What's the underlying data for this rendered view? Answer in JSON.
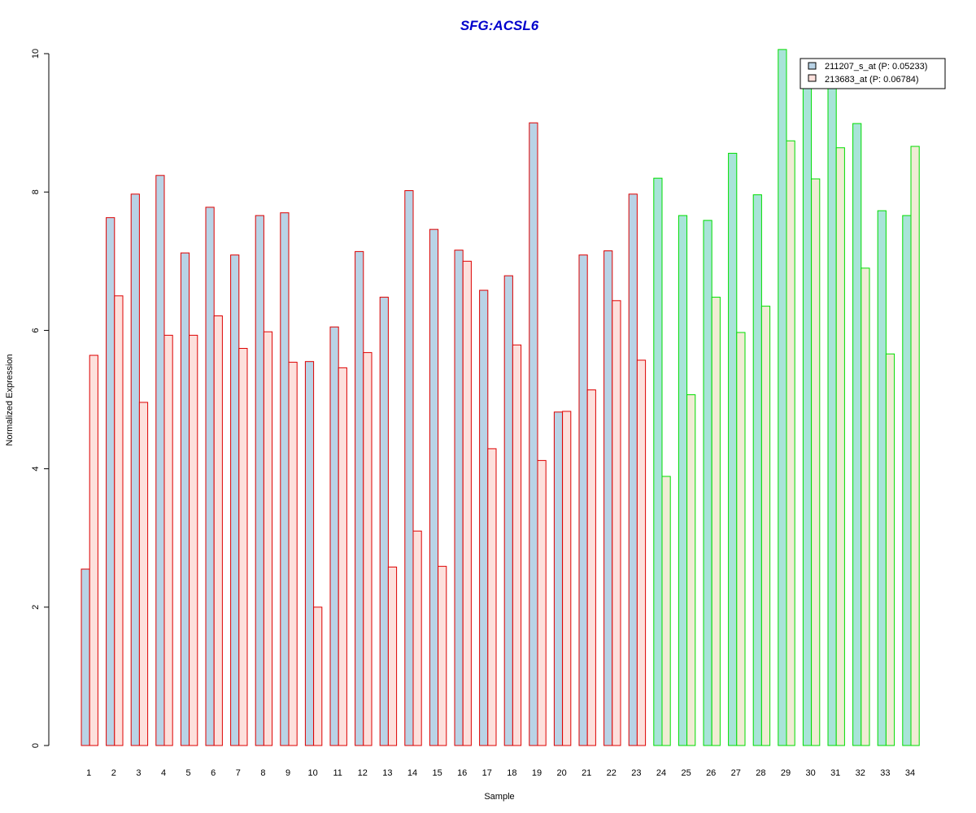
{
  "chart_data": {
    "type": "bar",
    "title": "SFG:ACSL6",
    "xlabel": "Sample",
    "ylabel": "Normalized Expression",
    "ylim": [
      0,
      10
    ],
    "yticks": [
      0,
      2,
      4,
      6,
      8,
      10
    ],
    "grid": false,
    "legend_position": "top-right",
    "categories": [
      "1",
      "2",
      "3",
      "4",
      "5",
      "6",
      "7",
      "8",
      "9",
      "10",
      "11",
      "12",
      "13",
      "14",
      "15",
      "16",
      "17",
      "18",
      "19",
      "20",
      "21",
      "22",
      "23",
      "24",
      "25",
      "26",
      "27",
      "28",
      "29",
      "30",
      "31",
      "32",
      "33",
      "34"
    ],
    "series": [
      {
        "name": "211207_s_at (P: 0.05233)",
        "values": [
          2.55,
          7.63,
          7.97,
          8.24,
          7.12,
          7.78,
          7.09,
          7.66,
          7.7,
          5.55,
          6.05,
          7.14,
          6.48,
          8.02,
          7.46,
          7.16,
          6.58,
          6.79,
          9.0,
          4.82,
          7.09,
          7.15,
          7.97,
          8.2,
          7.66,
          7.59,
          8.56,
          7.96,
          10.06,
          9.8,
          9.75,
          8.99,
          7.73,
          7.66
        ]
      },
      {
        "name": "213683_at (P: 0.06784)",
        "values": [
          5.64,
          6.5,
          4.96,
          5.93,
          5.93,
          6.21,
          5.74,
          5.98,
          5.54,
          2.0,
          5.46,
          5.68,
          2.58,
          3.1,
          2.59,
          7.0,
          4.29,
          5.79,
          4.12,
          4.83,
          5.14,
          6.43,
          5.57,
          3.89,
          5.07,
          6.48,
          5.97,
          6.35,
          8.74,
          8.19,
          8.64,
          6.9,
          5.66,
          8.66
        ]
      }
    ],
    "group_a_count": 23,
    "colors": {
      "title": "#0000cc",
      "series1_fill_a": "#b9d3e6",
      "series2_fill_a": "#fde0dc",
      "border_a": "#dd0000",
      "series1_fill_b": "#a8e4d8",
      "series2_fill_b": "#f0ecd4",
      "border_b": "#00dd00",
      "legend_series1": "#b9d3e6",
      "legend_series2": "#fde0dc"
    }
  }
}
